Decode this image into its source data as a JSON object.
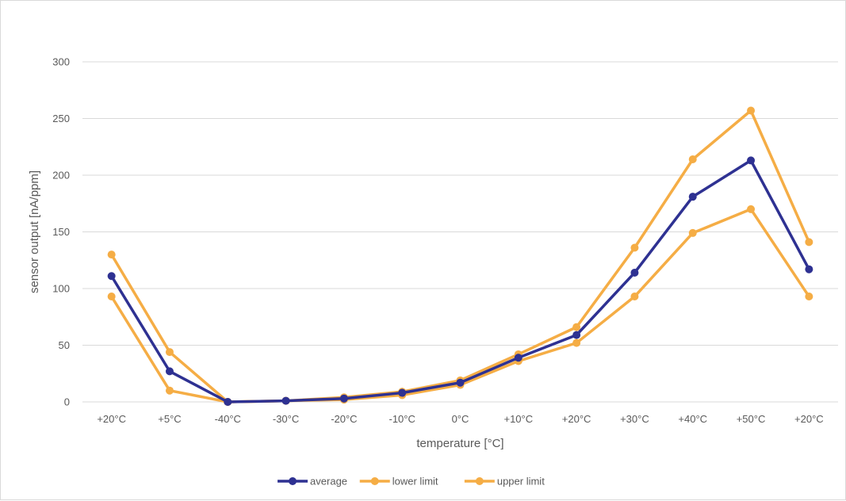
{
  "chart_data": {
    "type": "line",
    "title": "",
    "xlabel": "temperature [°C]",
    "ylabel": "sensor output [nA/ppm]",
    "categories": [
      "+20°C",
      "+5°C",
      "-40°C",
      "-30°C",
      "-20°C",
      "-10°C",
      "0°C",
      "+10°C",
      "+20°C",
      "+30°C",
      "+40°C",
      "+50°C",
      "+20°C"
    ],
    "ylim": [
      0,
      300
    ],
    "yticks": [
      0,
      50,
      100,
      150,
      200,
      250,
      300
    ],
    "grid": true,
    "legend_position": "bottom",
    "series": [
      {
        "name": "average",
        "color": "#2e3192",
        "values": [
          111,
          27,
          0,
          1,
          3,
          8,
          17,
          39,
          59,
          114,
          181,
          213,
          117
        ]
      },
      {
        "name": "lower limit",
        "color": "#f5ad45",
        "values": [
          93,
          10,
          0,
          1,
          2,
          6,
          15,
          36,
          52,
          93,
          149,
          170,
          93
        ]
      },
      {
        "name": "upper limit",
        "color": "#f5ad45",
        "values": [
          130,
          44,
          0,
          1,
          4,
          9,
          19,
          42,
          66,
          136,
          214,
          257,
          141
        ]
      }
    ]
  }
}
